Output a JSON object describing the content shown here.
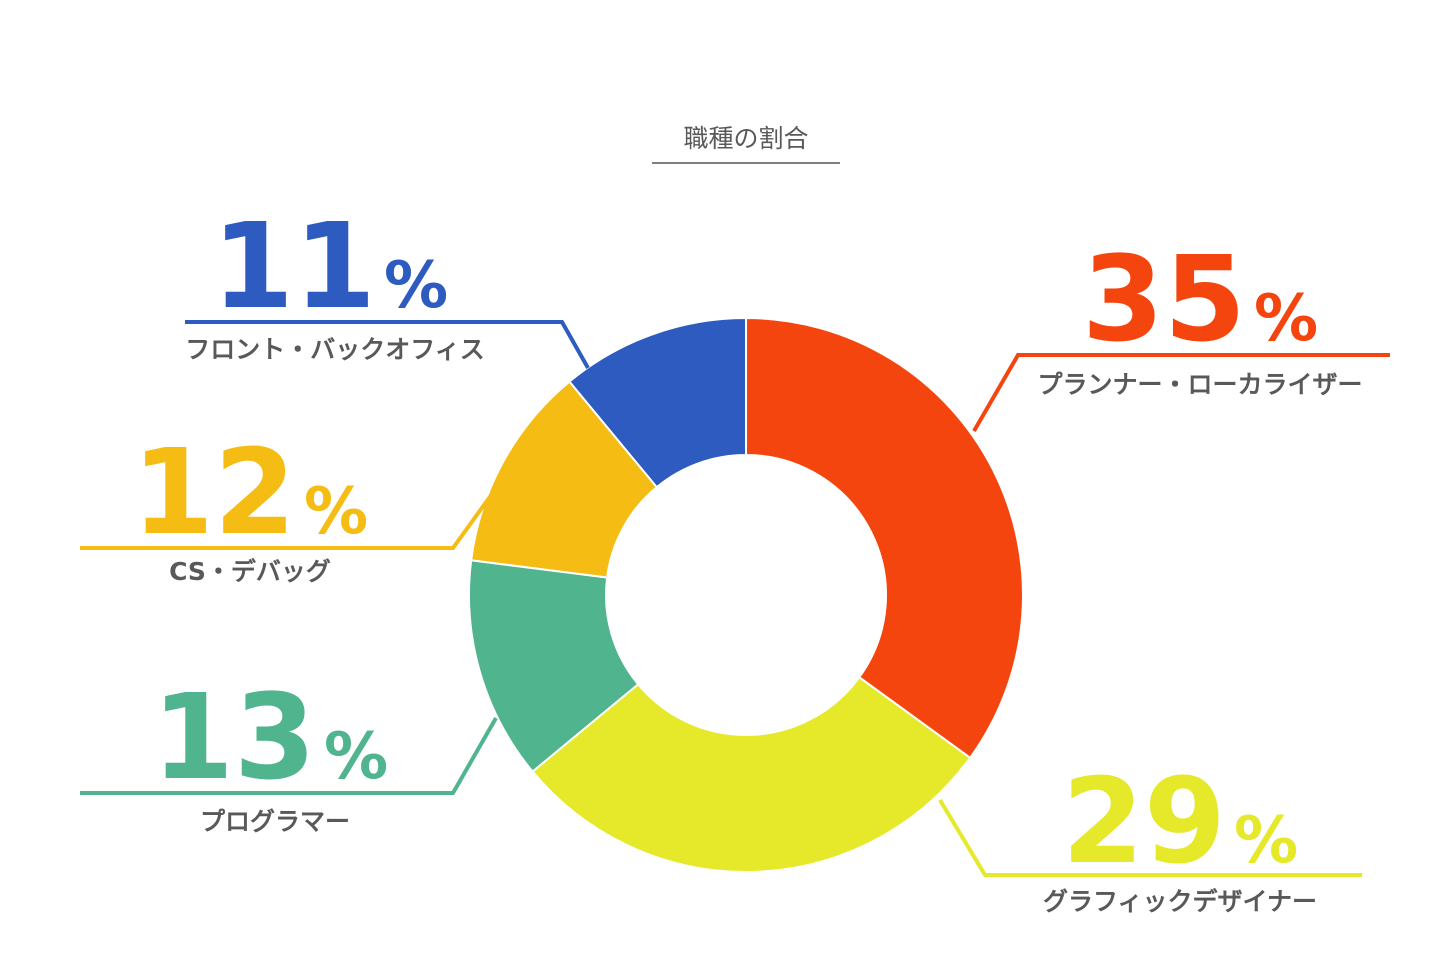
{
  "chart_data": {
    "type": "pie",
    "title": "職種の割合",
    "unit": "%",
    "slices": [
      {
        "label": "プランナー・ローカライザー",
        "value": 35,
        "color": "#f5450f",
        "side": "right"
      },
      {
        "label": "グラフィックデザイナー",
        "value": 29,
        "color": "#e6e82a",
        "side": "right"
      },
      {
        "label": "プログラマー",
        "value": 13,
        "color": "#50b48e",
        "side": "left"
      },
      {
        "label": "CS・デバッグ",
        "value": 12,
        "color": "#f5bd13",
        "side": "left"
      },
      {
        "label": "フロント・バックオフィス",
        "value": 11,
        "color": "#2d5bbf",
        "side": "left"
      }
    ]
  }
}
